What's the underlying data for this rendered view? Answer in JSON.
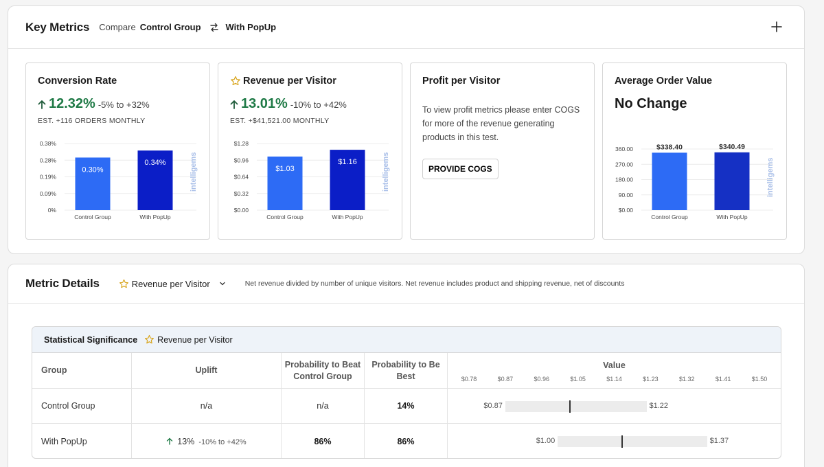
{
  "key_metrics": {
    "title": "Key Metrics",
    "compare_label": "Compare",
    "group_a": "Control Group",
    "group_b": "With PopUp"
  },
  "cards": [
    {
      "title": "Conversion Rate",
      "starred": false,
      "value": "12.32%",
      "range": "-5% to +32%",
      "estimate": "EST. +116 ORDERS MONTHLY",
      "watermark": "intelligems",
      "chart": {
        "y_ticks": [
          "0.38%",
          "0.28%",
          "0.19%",
          "0.09%",
          "0%"
        ],
        "y_max": 0.38,
        "categories": [
          "Control Group",
          "With PopUp"
        ],
        "values": [
          0.3,
          0.34
        ],
        "labels": [
          "0.30%",
          "0.34%"
        ],
        "colors": [
          "#2d6bf5",
          "#0b1ec7"
        ]
      }
    },
    {
      "title": "Revenue per Visitor",
      "starred": true,
      "value": "13.01%",
      "range": "-10% to +42%",
      "estimate": "EST. +$41,521.00 MONTHLY",
      "watermark": "intelligems",
      "chart": {
        "y_ticks": [
          "$1.28",
          "$0.96",
          "$0.64",
          "$0.32",
          "$0.00"
        ],
        "y_max": 1.28,
        "categories": [
          "Control Group",
          "With PopUp"
        ],
        "values": [
          1.03,
          1.16
        ],
        "labels": [
          "$1.03",
          "$1.16"
        ],
        "colors": [
          "#2d6bf5",
          "#0b1ec7"
        ]
      }
    },
    {
      "title": "Profit per Visitor",
      "text": "To view profit metrics please enter COGS for more of the revenue generating products in this test.",
      "button": "PROVIDE COGS"
    },
    {
      "title": "Average Order Value",
      "value": "No Change",
      "watermark": "intelligems",
      "chart": {
        "y_ticks": [
          "360.00",
          "270.00",
          "180.00",
          "90.00",
          "$0.00"
        ],
        "y_max": 360,
        "categories": [
          "Control Group",
          "With PopUp"
        ],
        "values": [
          338.4,
          340.49
        ],
        "labels": [
          "$338.40",
          "$340.49"
        ],
        "colors": [
          "#2d6bf5",
          "#1530c4"
        ]
      }
    }
  ],
  "metric_details": {
    "title": "Metric Details",
    "selected_metric": "Revenue per Visitor",
    "description": "Net revenue divided by number of unique visitors. Net revenue includes product and shipping revenue, net of discounts"
  },
  "significance": {
    "title": "Statistical Significance",
    "metric": "Revenue per Visitor",
    "headers": {
      "group": "Group",
      "uplift": "Uplift",
      "prob_beat": "Probability to Beat Control Group",
      "prob_best": "Probability to Be Best",
      "value": "Value"
    },
    "value_ticks": [
      "$0.78",
      "$0.87",
      "$0.96",
      "$1.05",
      "$1.14",
      "$1.23",
      "$1.32",
      "$1.41",
      "$1.50"
    ],
    "value_tick_nums": [
      0.78,
      0.87,
      0.96,
      1.05,
      1.14,
      1.23,
      1.32,
      1.41,
      1.5
    ],
    "rows": [
      {
        "group": "Control Group",
        "uplift": "n/a",
        "uplift_range": "",
        "prob_beat": "n/a",
        "prob_best": "14%",
        "low": 0.87,
        "mid": 1.03,
        "high": 1.22,
        "low_label": "$0.87",
        "high_label": "$1.22"
      },
      {
        "group": "With PopUp",
        "uplift": "13%",
        "uplift_range": "-10% to +42%",
        "prob_beat": "86%",
        "prob_best": "86%",
        "low": 1.0,
        "mid": 1.16,
        "high": 1.37,
        "low_label": "$1.00",
        "high_label": "$1.37"
      }
    ]
  }
}
